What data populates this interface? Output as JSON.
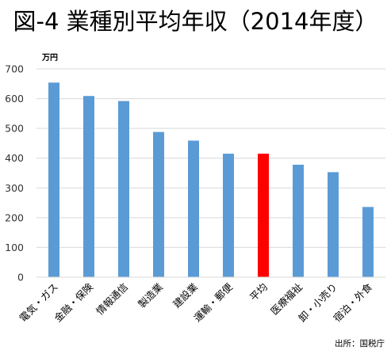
{
  "chart_data": {
    "type": "bar",
    "title": "図-4 業種別平均年収（2014年度）",
    "ylabel": "万円",
    "ylim": [
      0,
      700
    ],
    "yticks": [
      0,
      100,
      200,
      300,
      400,
      500,
      600,
      700
    ],
    "grid": true,
    "categories": [
      "電気・ガス",
      "金融・保険",
      "情報通信",
      "製造業",
      "建設業",
      "運輸・郵便",
      "平均",
      "医療福祉",
      "卸・小売り",
      "宿泊・外食"
    ],
    "values": [
      654,
      609,
      592,
      488,
      459,
      415,
      415,
      378,
      353,
      236
    ],
    "colors": [
      "#5b9bd5",
      "#5b9bd5",
      "#5b9bd5",
      "#5b9bd5",
      "#5b9bd5",
      "#5b9bd5",
      "#ff0000",
      "#5b9bd5",
      "#5b9bd5",
      "#5b9bd5"
    ]
  },
  "source_note": "出所：国税庁"
}
